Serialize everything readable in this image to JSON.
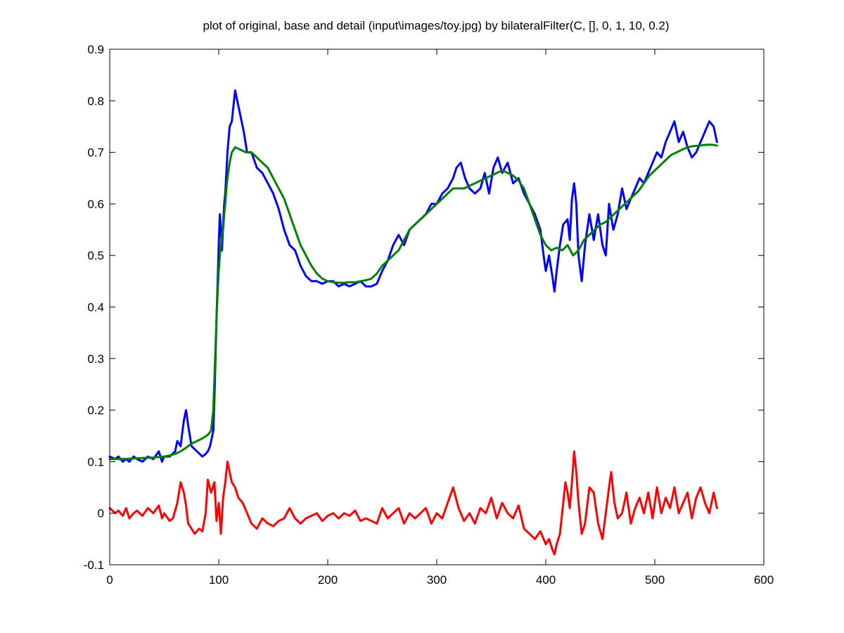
{
  "chart_data": {
    "type": "line",
    "title": "plot of original, base and detail (input\\images/toy.jpg) by bilateralFilter(C, [], 0, 1, 10, 0.2)",
    "xlabel": "",
    "ylabel": "",
    "xlim": [
      0,
      600
    ],
    "ylim": [
      -0.1,
      0.9
    ],
    "x_ticks": [
      0,
      100,
      200,
      300,
      400,
      500,
      600
    ],
    "x_tick_labels": [
      "0",
      "100",
      "200",
      "300",
      "400",
      "500",
      "600"
    ],
    "y_ticks": [
      -0.1,
      0,
      0.1,
      0.2,
      0.3,
      0.4,
      0.5,
      0.6,
      0.7,
      0.8,
      0.9
    ],
    "y_tick_labels": [
      "-0.1",
      "0",
      "0.1",
      "0.2",
      "0.3",
      "0.4",
      "0.5",
      "0.6",
      "0.7",
      "0.8",
      "0.9"
    ],
    "grid": false,
    "legend": "none",
    "series": [
      {
        "color": "#0000ff",
        "x": [
          0,
          5,
          8,
          12,
          15,
          18,
          22,
          25,
          30,
          35,
          40,
          45,
          48,
          50,
          55,
          60,
          62,
          65,
          68,
          70,
          72,
          75,
          80,
          85,
          88,
          90,
          92,
          95,
          96,
          97,
          98,
          99,
          100,
          101,
          102,
          103,
          104,
          105,
          106,
          108,
          110,
          112,
          115,
          118,
          120,
          123,
          126,
          130,
          135,
          140,
          145,
          150,
          155,
          160,
          165,
          170,
          175,
          180,
          185,
          190,
          195,
          200,
          205,
          210,
          215,
          220,
          225,
          230,
          235,
          240,
          245,
          250,
          255,
          260,
          265,
          270,
          275,
          280,
          285,
          290,
          295,
          300,
          305,
          310,
          315,
          318,
          322,
          326,
          330,
          335,
          340,
          344,
          348,
          352,
          356,
          360,
          365,
          370,
          375,
          380,
          385,
          390,
          395,
          398,
          400,
          403,
          406,
          408,
          410,
          413,
          416,
          420,
          422,
          424,
          426,
          428,
          430,
          433,
          436,
          440,
          444,
          448,
          452,
          455,
          458,
          462,
          466,
          470,
          474,
          478,
          482,
          486,
          490,
          494,
          498,
          502,
          506,
          510,
          514,
          518,
          522,
          526,
          530,
          534,
          538,
          542,
          546,
          550,
          554,
          557
        ],
        "values": [
          0.11,
          0.105,
          0.11,
          0.1,
          0.105,
          0.1,
          0.11,
          0.105,
          0.1,
          0.11,
          0.105,
          0.12,
          0.1,
          0.11,
          0.11,
          0.12,
          0.14,
          0.13,
          0.18,
          0.2,
          0.17,
          0.13,
          0.12,
          0.11,
          0.115,
          0.12,
          0.13,
          0.16,
          0.22,
          0.3,
          0.38,
          0.45,
          0.52,
          0.58,
          0.55,
          0.51,
          0.56,
          0.6,
          0.62,
          0.7,
          0.75,
          0.76,
          0.82,
          0.79,
          0.77,
          0.74,
          0.7,
          0.7,
          0.67,
          0.66,
          0.64,
          0.62,
          0.59,
          0.55,
          0.52,
          0.51,
          0.48,
          0.46,
          0.45,
          0.45,
          0.445,
          0.45,
          0.45,
          0.44,
          0.445,
          0.44,
          0.445,
          0.45,
          0.44,
          0.44,
          0.445,
          0.47,
          0.49,
          0.52,
          0.54,
          0.52,
          0.55,
          0.56,
          0.57,
          0.58,
          0.6,
          0.6,
          0.62,
          0.63,
          0.65,
          0.67,
          0.68,
          0.65,
          0.63,
          0.62,
          0.63,
          0.66,
          0.62,
          0.67,
          0.69,
          0.66,
          0.68,
          0.64,
          0.65,
          0.62,
          0.6,
          0.58,
          0.55,
          0.5,
          0.47,
          0.5,
          0.46,
          0.43,
          0.47,
          0.52,
          0.56,
          0.57,
          0.53,
          0.61,
          0.64,
          0.6,
          0.5,
          0.45,
          0.52,
          0.58,
          0.53,
          0.58,
          0.52,
          0.5,
          0.6,
          0.55,
          0.58,
          0.63,
          0.59,
          0.61,
          0.63,
          0.65,
          0.64,
          0.66,
          0.68,
          0.7,
          0.69,
          0.72,
          0.74,
          0.76,
          0.72,
          0.74,
          0.71,
          0.69,
          0.7,
          0.72,
          0.74,
          0.76,
          0.75,
          0.72
        ]
      },
      {
        "color": "#008000",
        "x": [
          0,
          10,
          20,
          30,
          40,
          50,
          55,
          60,
          65,
          70,
          75,
          80,
          85,
          90,
          93,
          95,
          96,
          97,
          98,
          99,
          100,
          101,
          102,
          103,
          104,
          105,
          106,
          107,
          108,
          110,
          112,
          115,
          120,
          125,
          130,
          135,
          140,
          145,
          150,
          155,
          160,
          165,
          170,
          175,
          180,
          185,
          190,
          195,
          200,
          205,
          210,
          215,
          220,
          225,
          230,
          235,
          240,
          245,
          250,
          255,
          260,
          265,
          270,
          275,
          280,
          285,
          290,
          295,
          300,
          305,
          310,
          315,
          320,
          325,
          330,
          335,
          340,
          345,
          350,
          355,
          360,
          365,
          370,
          375,
          380,
          385,
          390,
          395,
          400,
          405,
          410,
          415,
          420,
          425,
          430,
          435,
          440,
          445,
          450,
          455,
          460,
          465,
          470,
          475,
          480,
          485,
          490,
          495,
          500,
          505,
          510,
          515,
          520,
          525,
          530,
          535,
          540,
          545,
          550,
          555,
          557
        ],
        "values": [
          0.105,
          0.105,
          0.106,
          0.107,
          0.108,
          0.11,
          0.112,
          0.115,
          0.12,
          0.127,
          0.135,
          0.14,
          0.145,
          0.152,
          0.16,
          0.2,
          0.26,
          0.32,
          0.38,
          0.43,
          0.47,
          0.5,
          0.52,
          0.54,
          0.55,
          0.58,
          0.6,
          0.63,
          0.65,
          0.68,
          0.7,
          0.71,
          0.705,
          0.7,
          0.7,
          0.69,
          0.68,
          0.67,
          0.65,
          0.63,
          0.61,
          0.58,
          0.55,
          0.52,
          0.5,
          0.48,
          0.465,
          0.455,
          0.45,
          0.448,
          0.447,
          0.447,
          0.448,
          0.448,
          0.45,
          0.452,
          0.455,
          0.465,
          0.48,
          0.49,
          0.5,
          0.51,
          0.53,
          0.55,
          0.56,
          0.57,
          0.58,
          0.59,
          0.6,
          0.61,
          0.62,
          0.63,
          0.63,
          0.63,
          0.635,
          0.64,
          0.645,
          0.65,
          0.655,
          0.66,
          0.665,
          0.66,
          0.655,
          0.645,
          0.63,
          0.6,
          0.57,
          0.54,
          0.52,
          0.51,
          0.515,
          0.51,
          0.52,
          0.5,
          0.51,
          0.53,
          0.54,
          0.55,
          0.56,
          0.565,
          0.575,
          0.585,
          0.595,
          0.605,
          0.615,
          0.625,
          0.64,
          0.655,
          0.665,
          0.675,
          0.685,
          0.695,
          0.7,
          0.705,
          0.71,
          0.712,
          0.713,
          0.714,
          0.715,
          0.714,
          0.713
        ]
      },
      {
        "color": "#ff0000",
        "x": [
          0,
          5,
          8,
          12,
          15,
          18,
          22,
          25,
          30,
          35,
          40,
          45,
          48,
          50,
          55,
          58,
          62,
          65,
          68,
          70,
          72,
          75,
          78,
          82,
          85,
          88,
          90,
          93,
          96,
          98,
          100,
          102,
          104,
          106,
          108,
          110,
          112,
          115,
          118,
          122,
          126,
          130,
          135,
          140,
          145,
          150,
          155,
          160,
          165,
          170,
          175,
          180,
          185,
          190,
          195,
          200,
          205,
          210,
          215,
          220,
          225,
          230,
          235,
          240,
          245,
          250,
          255,
          260,
          265,
          270,
          275,
          280,
          285,
          290,
          295,
          300,
          305,
          310,
          315,
          320,
          325,
          330,
          335,
          340,
          345,
          350,
          355,
          360,
          365,
          370,
          375,
          380,
          385,
          390,
          395,
          400,
          403,
          406,
          408,
          410,
          413,
          416,
          418,
          420,
          422,
          424,
          426,
          428,
          430,
          433,
          436,
          440,
          444,
          448,
          452,
          455,
          458,
          460,
          463,
          466,
          470,
          474,
          478,
          482,
          486,
          490,
          494,
          498,
          502,
          506,
          510,
          514,
          518,
          522,
          526,
          530,
          534,
          538,
          542,
          546,
          550,
          554,
          557
        ],
        "values": [
          0.01,
          0.0,
          0.005,
          -0.005,
          0.01,
          -0.01,
          0.0,
          0.005,
          -0.005,
          0.01,
          0.0,
          0.015,
          -0.01,
          0.0,
          -0.015,
          -0.01,
          0.02,
          0.06,
          0.04,
          0.015,
          -0.02,
          -0.03,
          -0.04,
          -0.03,
          -0.035,
          0.0,
          0.065,
          0.04,
          0.06,
          -0.015,
          0.02,
          -0.04,
          0.03,
          0.06,
          0.1,
          0.08,
          0.06,
          0.05,
          0.03,
          0.02,
          0.0,
          -0.02,
          -0.03,
          -0.01,
          -0.02,
          -0.025,
          -0.015,
          -0.01,
          0.01,
          -0.01,
          -0.02,
          -0.01,
          -0.005,
          0.0,
          -0.015,
          -0.005,
          0.0,
          -0.01,
          0.0,
          -0.005,
          0.005,
          -0.015,
          -0.01,
          -0.015,
          -0.02,
          0.01,
          -0.01,
          0.0,
          0.01,
          -0.02,
          0.0,
          -0.01,
          0.0,
          0.01,
          -0.02,
          0.0,
          -0.01,
          0.02,
          0.05,
          0.01,
          -0.015,
          0.0,
          -0.02,
          0.01,
          0.0,
          0.03,
          -0.01,
          0.02,
          0.0,
          -0.01,
          0.015,
          -0.03,
          -0.04,
          -0.05,
          -0.035,
          -0.06,
          -0.05,
          -0.07,
          -0.08,
          -0.06,
          -0.04,
          0.02,
          0.06,
          0.04,
          0.01,
          0.06,
          0.12,
          0.08,
          0.02,
          -0.04,
          -0.02,
          0.05,
          0.04,
          -0.02,
          -0.05,
          0.0,
          0.05,
          0.08,
          0.02,
          -0.01,
          0.0,
          0.04,
          -0.02,
          0.01,
          0.03,
          0.0,
          0.04,
          -0.01,
          0.05,
          0.0,
          0.03,
          0.01,
          0.05,
          0.0,
          0.02,
          0.04,
          -0.01,
          0.03,
          0.05,
          0.02,
          0.0,
          0.04,
          0.01
        ]
      }
    ]
  }
}
